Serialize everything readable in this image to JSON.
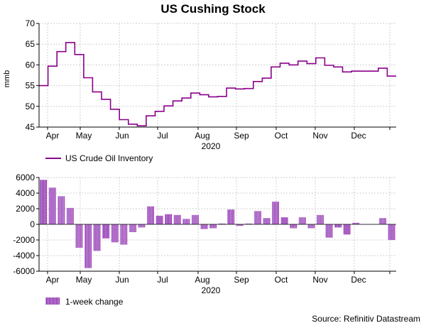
{
  "title": "US Cushing Stock",
  "source": "Source: Refinitiv Datastream",
  "colors": {
    "line": "#8b008b",
    "bar_a": "#b0a0e6",
    "bar_b": "#a01ea0",
    "grid": "#cfcfcf"
  },
  "chart_data": [
    {
      "type": "line",
      "ylabel": "mmb",
      "xlabel": "2020",
      "ylim": [
        45,
        70
      ],
      "yticks": [
        45,
        50,
        55,
        60,
        65,
        70
      ],
      "month_labels": [
        "Apr",
        "May",
        "Jun",
        "Jul",
        "Aug",
        "Sep",
        "Oct",
        "Nov",
        "Dec"
      ],
      "series": [
        {
          "name": "US Crude Oil Inventory",
          "values": [
            55.0,
            59.7,
            63.2,
            65.4,
            62.5,
            56.9,
            53.5,
            51.7,
            49.3,
            46.8,
            45.7,
            45.3,
            47.7,
            48.8,
            50.1,
            51.3,
            52.0,
            53.2,
            52.8,
            52.3,
            52.4,
            54.4,
            54.2,
            54.3,
            56.0,
            56.8,
            59.5,
            60.4,
            60.0,
            60.9,
            60.3,
            61.7,
            59.9,
            59.5,
            58.3,
            58.5,
            58.5,
            58.5,
            59.2,
            57.3
          ]
        }
      ]
    },
    {
      "type": "bar",
      "xlabel": "2020",
      "ylim": [
        -6000,
        6000
      ],
      "yticks": [
        -6000,
        -4000,
        -2000,
        0,
        2000,
        4000,
        6000
      ],
      "month_labels": [
        "Apr",
        "May",
        "Jun",
        "Jul",
        "Aug",
        "Sep",
        "Oct",
        "Nov",
        "Dec"
      ],
      "series": [
        {
          "name": "1-week change",
          "values": [
            5700,
            4700,
            3600,
            2100,
            -3000,
            -5600,
            -3400,
            -1800,
            -2300,
            -2600,
            -1000,
            -400,
            2300,
            1100,
            1300,
            1200,
            700,
            1200,
            -600,
            -500,
            100,
            1900,
            -200,
            100,
            1700,
            800,
            2900,
            900,
            -500,
            900,
            -500,
            1200,
            -1700,
            -400,
            -1300,
            200,
            0,
            0,
            800,
            -2000
          ]
        }
      ],
      "legend_label": "1-week change"
    }
  ],
  "legend_top": "US Crude Oil Inventory",
  "legend_bottom": "1-week change"
}
